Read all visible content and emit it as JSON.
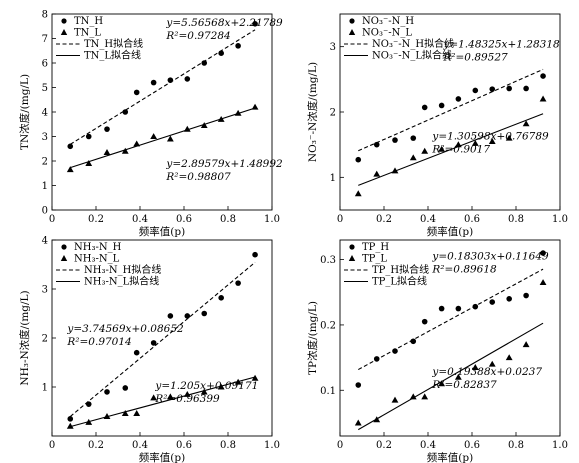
{
  "chart_data": [
    {
      "type": "scatter",
      "xlabel": "频率值(p)",
      "ylabel": "TN浓度/(mg/L)",
      "xlim": [
        0,
        1.0
      ],
      "ylim": [
        0,
        8
      ],
      "xticks": [
        "0",
        "0.2",
        "0.4",
        "0.6",
        "0.8",
        "1.0"
      ],
      "yticks": [
        "0",
        "1",
        "2",
        "3",
        "4",
        "5",
        "6",
        "7",
        "8"
      ],
      "legend": [
        "TN_H",
        "TN_L",
        "TN_H拟合线",
        "TN_L拟合线"
      ],
      "legend_position": "top-left",
      "series": [
        {
          "name": "TN_H",
          "marker": "circle",
          "x": [
            0.083,
            0.167,
            0.25,
            0.333,
            0.385,
            0.462,
            0.538,
            0.615,
            0.692,
            0.769,
            0.846,
            0.923
          ],
          "y": [
            2.6,
            3.0,
            3.3,
            4.0,
            4.8,
            5.2,
            5.3,
            5.35,
            6.0,
            6.4,
            6.7,
            7.6
          ]
        },
        {
          "name": "TN_L",
          "marker": "triangle",
          "x": [
            0.083,
            0.167,
            0.25,
            0.333,
            0.385,
            0.462,
            0.538,
            0.615,
            0.692,
            0.769,
            0.846,
            0.923
          ],
          "y": [
            1.65,
            1.9,
            2.35,
            2.4,
            2.7,
            3.0,
            2.9,
            3.3,
            3.45,
            3.7,
            3.95,
            4.2
          ]
        }
      ],
      "fits": [
        {
          "label": "TN_H拟合线",
          "style": "dashed",
          "slope": 5.56568,
          "intercept": 2.21789,
          "eq": "y=5.56568x+2.21789",
          "r2": "R²=0.97284",
          "x_range": [
            0.083,
            0.923
          ]
        },
        {
          "label": "TN_L拟合线",
          "style": "solid",
          "slope": 2.89579,
          "intercept": 1.48992,
          "eq": "y=2.89579x+1.48992",
          "r2": "R²=0.98807",
          "x_range": [
            0.083,
            0.923
          ]
        }
      ]
    },
    {
      "type": "scatter",
      "xlabel": "频率值(p)",
      "ylabel": "NO₃⁻-N浓度/(mg/L)",
      "xlim": [
        0,
        1.0
      ],
      "ylim": [
        0.5,
        3.5
      ],
      "xticks": [
        "0",
        "0.2",
        "0.4",
        "0.6",
        "0.8",
        "1.0"
      ],
      "yticks": [
        "1",
        "2",
        "3"
      ],
      "legend": [
        "NO₃⁻-N_H",
        "NO₃⁻-N_L",
        "NO₃⁻-N_H拟合线",
        "NO₃⁻-N_L拟合线"
      ],
      "legend_position": "top-left",
      "series": [
        {
          "name": "NO₃⁻-N_H",
          "marker": "circle",
          "x": [
            0.083,
            0.167,
            0.25,
            0.333,
            0.385,
            0.462,
            0.538,
            0.615,
            0.692,
            0.769,
            0.846,
            0.923
          ],
          "y": [
            1.27,
            1.5,
            1.57,
            1.6,
            2.07,
            2.1,
            2.2,
            2.33,
            2.35,
            2.36,
            2.36,
            2.55
          ]
        },
        {
          "name": "NO₃⁻-N_L",
          "marker": "triangle",
          "x": [
            0.083,
            0.167,
            0.25,
            0.333,
            0.385,
            0.462,
            0.538,
            0.615,
            0.692,
            0.769,
            0.846,
            0.923
          ],
          "y": [
            0.75,
            1.05,
            1.1,
            1.3,
            1.4,
            1.43,
            1.5,
            1.52,
            1.55,
            1.6,
            1.82,
            2.2
          ]
        }
      ],
      "fits": [
        {
          "label": "NO₃⁻-N_H拟合线",
          "style": "dashed",
          "slope": 1.48325,
          "intercept": 1.28318,
          "eq": "y=1.48325x+1.28318",
          "r2": "R²=0.89527",
          "x_range": [
            0.083,
            0.923
          ]
        },
        {
          "label": "NO₃⁻-N_L拟合线",
          "style": "solid",
          "slope": 1.30598,
          "intercept": 0.76789,
          "eq": "y=1.30598x+0.76789",
          "r2": "R²=0.9017",
          "x_range": [
            0.083,
            0.923
          ]
        }
      ]
    },
    {
      "type": "scatter",
      "xlabel": "频率值(p)",
      "ylabel": "NH₃-N浓度/(mg/L)",
      "xlim": [
        0,
        1.0
      ],
      "ylim": [
        0,
        4
      ],
      "xticks": [
        "0",
        "0.2",
        "0.4",
        "0.6",
        "0.8",
        "1.0"
      ],
      "yticks": [
        "1",
        "2",
        "3",
        "4"
      ],
      "legend": [
        "NH₃-N_H",
        "NH₃-N_L",
        "NH₃-N_H拟合线",
        "NH₃-N_L拟合线"
      ],
      "legend_position": "top-left",
      "series": [
        {
          "name": "NH₃-N_H",
          "marker": "circle",
          "x": [
            0.083,
            0.167,
            0.25,
            0.333,
            0.385,
            0.462,
            0.538,
            0.615,
            0.692,
            0.769,
            0.846,
            0.923
          ],
          "y": [
            0.35,
            0.65,
            0.9,
            0.98,
            1.7,
            1.9,
            2.45,
            2.45,
            2.5,
            2.82,
            3.12,
            3.7
          ]
        },
        {
          "name": "NH₃-N_L",
          "marker": "triangle",
          "x": [
            0.083,
            0.167,
            0.25,
            0.333,
            0.385,
            0.462,
            0.538,
            0.615,
            0.692,
            0.769,
            0.846,
            0.923
          ],
          "y": [
            0.2,
            0.28,
            0.4,
            0.46,
            0.46,
            0.78,
            0.8,
            0.85,
            0.9,
            1.0,
            1.1,
            1.18
          ]
        }
      ],
      "fits": [
        {
          "label": "NH₃-N_H拟合线",
          "style": "dashed",
          "slope": 3.74569,
          "intercept": 0.08652,
          "eq": "y=3.74569x+0.08652",
          "r2": "R²=0.97014",
          "x_range": [
            0.083,
            0.923
          ]
        },
        {
          "label": "NH₃-N_L拟合线",
          "style": "solid",
          "slope": 1.205,
          "intercept": 0.09171,
          "eq": "y=1.205x+0.09171",
          "r2": "R²=0.96399",
          "x_range": [
            0.083,
            0.923
          ]
        }
      ]
    },
    {
      "type": "scatter",
      "xlabel": "频率值(p)",
      "ylabel": "TP浓度/(mg/L)",
      "xlim": [
        0,
        1.0
      ],
      "ylim": [
        0.03,
        0.33
      ],
      "xticks": [
        "0",
        "0.2",
        "0.4",
        "0.6",
        "0.8",
        "1.0"
      ],
      "yticks": [
        "0.1",
        "0.2",
        "0.3"
      ],
      "legend": [
        "TP_H",
        "TP_L",
        "TP_H拟合线",
        "TP_L拟合线"
      ],
      "legend_position": "top-left",
      "series": [
        {
          "name": "TP_H",
          "marker": "circle",
          "x": [
            0.083,
            0.167,
            0.25,
            0.333,
            0.385,
            0.462,
            0.538,
            0.615,
            0.692,
            0.769,
            0.846,
            0.923
          ],
          "y": [
            0.108,
            0.148,
            0.16,
            0.175,
            0.205,
            0.225,
            0.225,
            0.228,
            0.235,
            0.24,
            0.245,
            0.31
          ]
        },
        {
          "name": "TP_L",
          "marker": "triangle",
          "x": [
            0.083,
            0.167,
            0.25,
            0.333,
            0.385,
            0.462,
            0.538,
            0.615,
            0.692,
            0.769,
            0.846,
            0.923
          ],
          "y": [
            0.05,
            0.055,
            0.085,
            0.09,
            0.09,
            0.11,
            0.12,
            0.135,
            0.14,
            0.15,
            0.17,
            0.265
          ]
        }
      ],
      "fits": [
        {
          "label": "TP_H拟合线",
          "style": "dashed",
          "slope": 0.18303,
          "intercept": 0.11649,
          "eq": "y=0.18303x+0.11649",
          "r2": "R²=0.89618",
          "x_range": [
            0.083,
            0.923
          ]
        },
        {
          "label": "TP_L拟合线",
          "style": "solid",
          "slope": 0.19388,
          "intercept": 0.0237,
          "eq": "y=0.19388x+0.0237",
          "r2": "R²=0.82837",
          "x_range": [
            0.083,
            0.923
          ]
        }
      ]
    }
  ]
}
